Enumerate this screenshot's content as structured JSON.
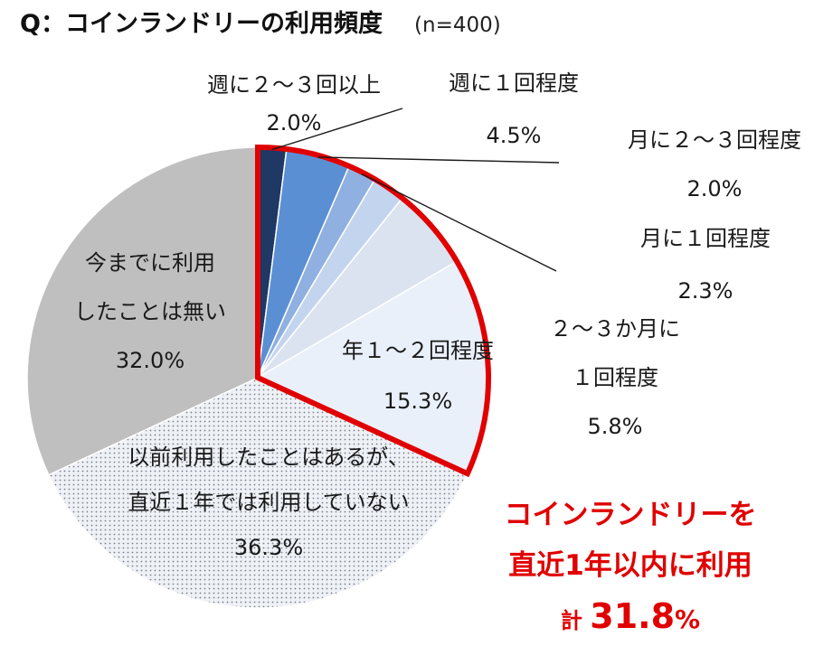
{
  "title": "Q：コインランドリーの利用頻度",
  "sample_size": "(n=400)",
  "chart_data": {
    "type": "pie",
    "title": "Q：コインランドリーの利用頻度",
    "start": "12 o'clock",
    "direction": "clockwise",
    "slices": [
      {
        "id": "weekly-2-3",
        "lines": [
          "週に２～３回以上"
        ],
        "value": 2.0,
        "value_label": "2.0%",
        "color": "#1f3864"
      },
      {
        "id": "weekly-1",
        "lines": [
          "週に１回程度"
        ],
        "value": 4.5,
        "value_label": "4.5%",
        "color": "#5b8fd4"
      },
      {
        "id": "monthly-2-3",
        "lines": [
          "月に２～３回程度"
        ],
        "value": 2.0,
        "value_label": "2.0%",
        "color": "#8fb0e0"
      },
      {
        "id": "monthly-1",
        "lines": [
          "月に１回程度"
        ],
        "value": 2.3,
        "value_label": "2.3%",
        "color": "#c3d4ee"
      },
      {
        "id": "bimonthly",
        "lines": [
          "２～３か月に",
          "１回程度"
        ],
        "value": 5.8,
        "value_label": "5.8%",
        "color": "#dbe3f0"
      },
      {
        "id": "yearly-1-2",
        "lines": [
          "年１～２回程度"
        ],
        "value": 15.3,
        "value_label": "15.3%",
        "color": "#eaf0fa"
      },
      {
        "id": "used-before",
        "lines": [
          "以前利用したことはあるが、",
          "直近１年では利用していない"
        ],
        "value": 36.3,
        "value_label": "36.3%",
        "color": "#eef1f6",
        "pattern": "dots"
      },
      {
        "id": "never-used",
        "lines": [
          "今までに利用",
          "したことは無い"
        ],
        "value": 32.0,
        "value_label": "32.0%",
        "color": "#bfbfbf"
      }
    ],
    "highlight": {
      "slice_ids": [
        "weekly-2-3",
        "weekly-1",
        "monthly-2-3",
        "monthly-1",
        "bimonthly",
        "yearly-1-2"
      ],
      "outline_color": "#e00000"
    },
    "callout": {
      "lines": [
        "コインランドリーを",
        "直近1年以内に利用"
      ],
      "total_prefix": "計",
      "total_value": "31.8",
      "total_unit": "%",
      "color": "#e00000"
    }
  }
}
